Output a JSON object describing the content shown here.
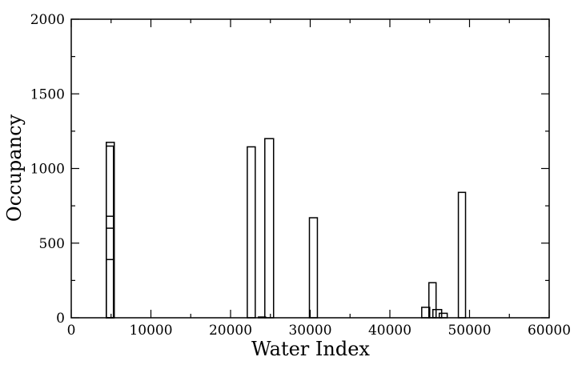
{
  "chart_data": {
    "type": "bar",
    "title": "",
    "xlabel": "Water Index",
    "ylabel": "Occupancy",
    "xlim": [
      0,
      60000
    ],
    "ylim": [
      0,
      2000
    ],
    "xticks": [
      0,
      10000,
      20000,
      30000,
      40000,
      50000,
      60000
    ],
    "yticks": [
      0,
      500,
      1000,
      1500,
      2000
    ],
    "xtick_labels": [
      "0",
      "10000",
      "20000",
      "30000",
      "40000",
      "50000",
      "60000"
    ],
    "ytick_labels": [
      "0",
      "500",
      "1000",
      "1500",
      "2000"
    ],
    "grid": false,
    "legend": "none",
    "bar_style": "outline",
    "colors": {
      "stroke": "#000000",
      "fill": "#ffffff",
      "background": "#ffffff"
    },
    "bars": [
      {
        "x0": 4400,
        "x1": 5400,
        "value": 1175
      },
      {
        "x0": 4400,
        "x1": 5300,
        "value": 1150
      },
      {
        "x0": 4400,
        "x1": 5300,
        "value": 680
      },
      {
        "x0": 4400,
        "x1": 5300,
        "value": 600
      },
      {
        "x0": 4400,
        "x1": 5300,
        "value": 390
      },
      {
        "x0": 22100,
        "x1": 23100,
        "value": 1145
      },
      {
        "x0": 23500,
        "x1": 24400,
        "value": 5
      },
      {
        "x0": 24300,
        "x1": 25400,
        "value": 1200
      },
      {
        "x0": 29900,
        "x1": 30900,
        "value": 670
      },
      {
        "x0": 44000,
        "x1": 45000,
        "value": 70
      },
      {
        "x0": 44900,
        "x1": 45800,
        "value": 235
      },
      {
        "x0": 45400,
        "x1": 46500,
        "value": 55
      },
      {
        "x0": 46200,
        "x1": 47200,
        "value": 30
      },
      {
        "x0": 48600,
        "x1": 49500,
        "value": 840
      }
    ]
  }
}
